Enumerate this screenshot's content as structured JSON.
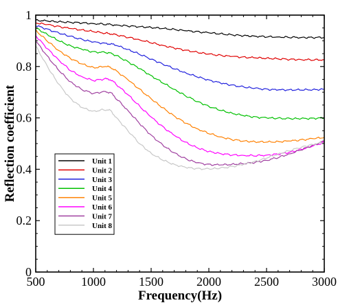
{
  "chart_data": {
    "type": "line",
    "xlabel": "Frequency(Hz)",
    "ylabel": "Reflection coefficient",
    "xlim": [
      500,
      3000
    ],
    "ylim": [
      0,
      1
    ],
    "xticks": [
      500,
      1000,
      1500,
      2000,
      2500,
      3000
    ],
    "yticks": [
      0,
      0.2,
      0.4,
      0.6,
      0.8,
      1
    ],
    "ytick_labels": [
      "0",
      "0.2",
      "0.4",
      "0.6",
      "0.8",
      "1"
    ],
    "legend_position": "lower-left",
    "grid": false,
    "x": [
      500,
      600,
      700,
      800,
      900,
      1000,
      1100,
      1150,
      1200,
      1300,
      1400,
      1500,
      1600,
      1700,
      1800,
      1900,
      2000,
      2100,
      2200,
      2300,
      2400,
      2500,
      2600,
      2700,
      2800,
      2900,
      3000
    ],
    "series": [
      {
        "name": "Unit 1",
        "color": "#000000",
        "values": [
          0.98,
          0.977,
          0.974,
          0.972,
          0.97,
          0.967,
          0.965,
          0.963,
          0.961,
          0.958,
          0.955,
          0.952,
          0.948,
          0.944,
          0.939,
          0.935,
          0.931,
          0.927,
          0.923,
          0.92,
          0.918,
          0.916,
          0.915,
          0.914,
          0.913,
          0.913,
          0.913
        ]
      },
      {
        "name": "Unit 2",
        "color": "#e00000",
        "values": [
          0.97,
          0.963,
          0.955,
          0.948,
          0.942,
          0.936,
          0.93,
          0.927,
          0.923,
          0.914,
          0.904,
          0.893,
          0.882,
          0.872,
          0.863,
          0.855,
          0.848,
          0.843,
          0.839,
          0.836,
          0.834,
          0.832,
          0.83,
          0.828,
          0.827,
          0.826,
          0.826
        ]
      },
      {
        "name": "Unit 3",
        "color": "#2020dd",
        "values": [
          0.96,
          0.945,
          0.93,
          0.917,
          0.905,
          0.895,
          0.89,
          0.888,
          0.882,
          0.866,
          0.848,
          0.829,
          0.81,
          0.792,
          0.775,
          0.76,
          0.747,
          0.736,
          0.727,
          0.72,
          0.715,
          0.711,
          0.709,
          0.709,
          0.709,
          0.71,
          0.711
        ]
      },
      {
        "name": "Unit 4",
        "color": "#00c000",
        "values": [
          0.95,
          0.925,
          0.9,
          0.88,
          0.867,
          0.856,
          0.855,
          0.852,
          0.842,
          0.818,
          0.792,
          0.764,
          0.737,
          0.711,
          0.686,
          0.664,
          0.645,
          0.63,
          0.618,
          0.609,
          0.603,
          0.6,
          0.598,
          0.597,
          0.597,
          0.598,
          0.6
        ]
      },
      {
        "name": "Unit 5",
        "color": "#ff8000",
        "values": [
          0.94,
          0.9,
          0.862,
          0.832,
          0.81,
          0.795,
          0.8,
          0.797,
          0.782,
          0.748,
          0.711,
          0.674,
          0.639,
          0.607,
          0.58,
          0.557,
          0.54,
          0.526,
          0.516,
          0.51,
          0.507,
          0.506,
          0.507,
          0.51,
          0.514,
          0.519,
          0.524
        ]
      },
      {
        "name": "Unit 6",
        "color": "#ff00ff",
        "values": [
          0.92,
          0.87,
          0.825,
          0.785,
          0.76,
          0.745,
          0.752,
          0.749,
          0.73,
          0.69,
          0.645,
          0.603,
          0.565,
          0.532,
          0.504,
          0.483,
          0.469,
          0.461,
          0.456,
          0.454,
          0.453,
          0.455,
          0.459,
          0.466,
          0.477,
          0.49,
          0.505
        ]
      },
      {
        "name": "Unit 7",
        "color": "#a040a0",
        "values": [
          0.9,
          0.84,
          0.785,
          0.74,
          0.71,
          0.695,
          0.703,
          0.698,
          0.675,
          0.628,
          0.578,
          0.532,
          0.494,
          0.463,
          0.44,
          0.425,
          0.418,
          0.417,
          0.419,
          0.422,
          0.427,
          0.435,
          0.446,
          0.46,
          0.476,
          0.493,
          0.51
        ]
      },
      {
        "name": "Unit 8",
        "color": "#c8c8c8",
        "values": [
          0.88,
          0.8,
          0.73,
          0.675,
          0.64,
          0.625,
          0.633,
          0.628,
          0.6,
          0.55,
          0.5,
          0.462,
          0.436,
          0.418,
          0.407,
          0.402,
          0.401,
          0.404,
          0.41,
          0.419,
          0.43,
          0.444,
          0.459,
          0.473,
          0.486,
          0.497,
          0.505
        ]
      }
    ]
  }
}
